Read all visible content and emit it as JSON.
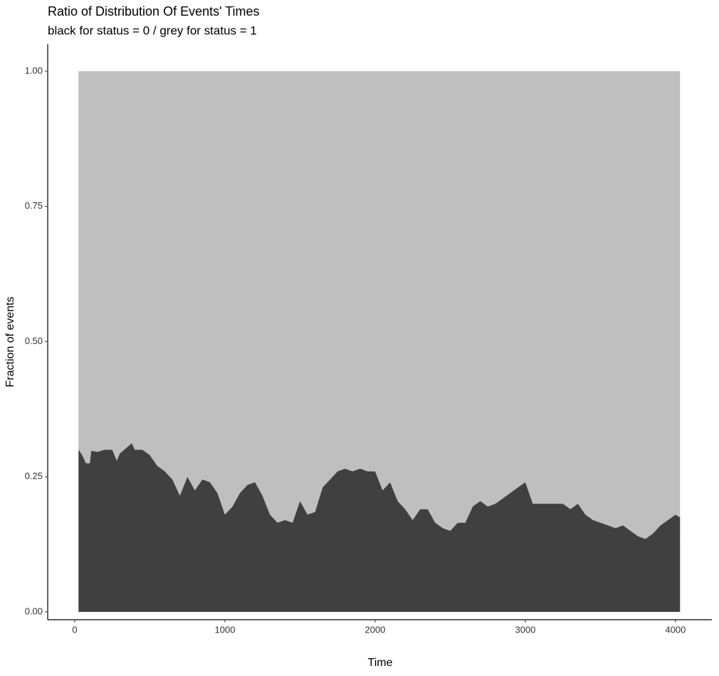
{
  "chart_data": {
    "type": "stacked_area",
    "title": "Ratio of Distribution Of Events' Times",
    "subtitle": "black for status = 0 / grey for status = 1",
    "x_label": "Time",
    "y_label": "Fraction of events",
    "x": [
      25,
      50,
      75,
      100,
      110,
      150,
      200,
      250,
      280,
      300,
      350,
      380,
      400,
      450,
      500,
      550,
      600,
      650,
      700,
      750,
      800,
      850,
      900,
      950,
      1000,
      1050,
      1100,
      1150,
      1200,
      1250,
      1300,
      1350,
      1400,
      1450,
      1500,
      1550,
      1600,
      1650,
      1700,
      1750,
      1800,
      1850,
      1900,
      1950,
      2000,
      2050,
      2100,
      2150,
      2200,
      2250,
      2300,
      2350,
      2400,
      2450,
      2500,
      2550,
      2600,
      2650,
      2700,
      2750,
      2800,
      2850,
      2900,
      2950,
      3000,
      3050,
      3100,
      3150,
      3200,
      3250,
      3300,
      3350,
      3400,
      3450,
      3500,
      3550,
      3600,
      3650,
      3700,
      3750,
      3800,
      3850,
      3900,
      3950,
      4000,
      4030
    ],
    "series": [
      {
        "color": "#404040",
        "values": [
          0.3,
          0.29,
          0.275,
          0.275,
          0.298,
          0.296,
          0.3,
          0.3,
          0.28,
          0.293,
          0.305,
          0.312,
          0.3,
          0.3,
          0.29,
          0.27,
          0.26,
          0.245,
          0.215,
          0.25,
          0.225,
          0.245,
          0.24,
          0.22,
          0.18,
          0.195,
          0.22,
          0.235,
          0.24,
          0.215,
          0.18,
          0.165,
          0.17,
          0.165,
          0.205,
          0.18,
          0.185,
          0.23,
          0.245,
          0.26,
          0.265,
          0.26,
          0.265,
          0.26,
          0.26,
          0.225,
          0.24,
          0.205,
          0.19,
          0.17,
          0.19,
          0.19,
          0.165,
          0.155,
          0.15,
          0.165,
          0.165,
          0.195,
          0.205,
          0.195,
          0.2,
          0.21,
          0.22,
          0.23,
          0.24,
          0.2,
          0.2,
          0.2,
          0.2,
          0.2,
          0.19,
          0.2,
          0.18,
          0.17,
          0.165,
          0.16,
          0.155,
          0.16,
          0.15,
          0.14,
          0.135,
          0.145,
          0.16,
          0.17,
          0.18,
          0.175
        ]
      },
      {
        "color": "#bfbfbf",
        "values": [
          0.7,
          0.71,
          0.725,
          0.725,
          0.702,
          0.704,
          0.7,
          0.7,
          0.72,
          0.707,
          0.695,
          0.688,
          0.7,
          0.7,
          0.71,
          0.73,
          0.74,
          0.755,
          0.785,
          0.75,
          0.775,
          0.755,
          0.76,
          0.78,
          0.82,
          0.805,
          0.78,
          0.765,
          0.76,
          0.785,
          0.82,
          0.835,
          0.83,
          0.835,
          0.795,
          0.82,
          0.815,
          0.77,
          0.755,
          0.74,
          0.735,
          0.74,
          0.735,
          0.74,
          0.74,
          0.775,
          0.76,
          0.795,
          0.81,
          0.83,
          0.81,
          0.81,
          0.835,
          0.845,
          0.85,
          0.835,
          0.835,
          0.805,
          0.795,
          0.805,
          0.8,
          0.79,
          0.78,
          0.77,
          0.76,
          0.8,
          0.8,
          0.8,
          0.8,
          0.8,
          0.81,
          0.8,
          0.82,
          0.83,
          0.835,
          0.84,
          0.845,
          0.84,
          0.85,
          0.86,
          0.865,
          0.855,
          0.84,
          0.83,
          0.82,
          0.825
        ]
      }
    ],
    "xlim": [
      -180,
      4242
    ],
    "xticks": [
      0,
      1000,
      2000,
      3000,
      4000
    ],
    "ylim": [
      -0.0145,
      1.05
    ],
    "yticks": [
      {
        "value": 0,
        "label": "0.00"
      },
      {
        "value": 0.25,
        "label": "0.25"
      },
      {
        "value": 0.5,
        "label": "0.50"
      },
      {
        "value": 0.75,
        "label": "0.75"
      },
      {
        "value": 1,
        "label": "1.00"
      }
    ]
  }
}
